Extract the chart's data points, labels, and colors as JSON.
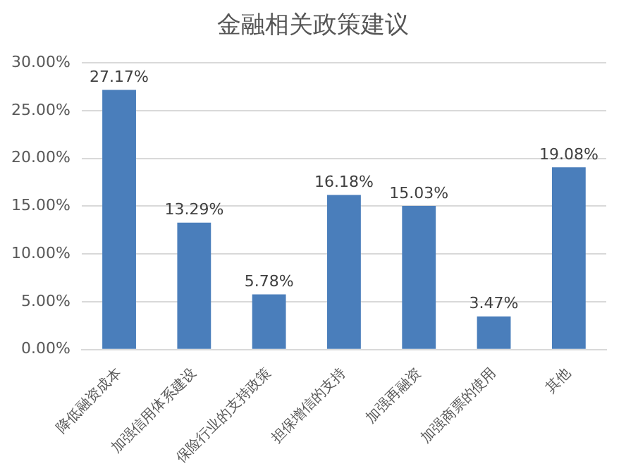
{
  "chart_data": {
    "type": "bar",
    "title": "金融相关政策建议",
    "categories": [
      "降低融资成本",
      "加强信用体系建设",
      "保险行业的支持政策",
      "担保增信的支持",
      "加强再融资",
      "加强商票的使用",
      "其他"
    ],
    "values": [
      27.17,
      13.29,
      5.78,
      16.18,
      15.03,
      3.47,
      19.08
    ],
    "value_labels": [
      "27.17%",
      "13.29%",
      "5.78%",
      "16.18%",
      "15.03%",
      "3.47%",
      "19.08%"
    ],
    "color": "#4a7ebb",
    "ylim": [
      0,
      30
    ],
    "yticks": [
      {
        "value": 0,
        "label": "0.00%"
      },
      {
        "value": 5,
        "label": "5.00%"
      },
      {
        "value": 10,
        "label": "10.00%"
      },
      {
        "value": 15,
        "label": "15.00%"
      },
      {
        "value": 20,
        "label": "20.00%"
      },
      {
        "value": 25,
        "label": "25.00%"
      },
      {
        "value": 30,
        "label": "30.00%"
      }
    ],
    "grid": "y",
    "legend": false
  }
}
